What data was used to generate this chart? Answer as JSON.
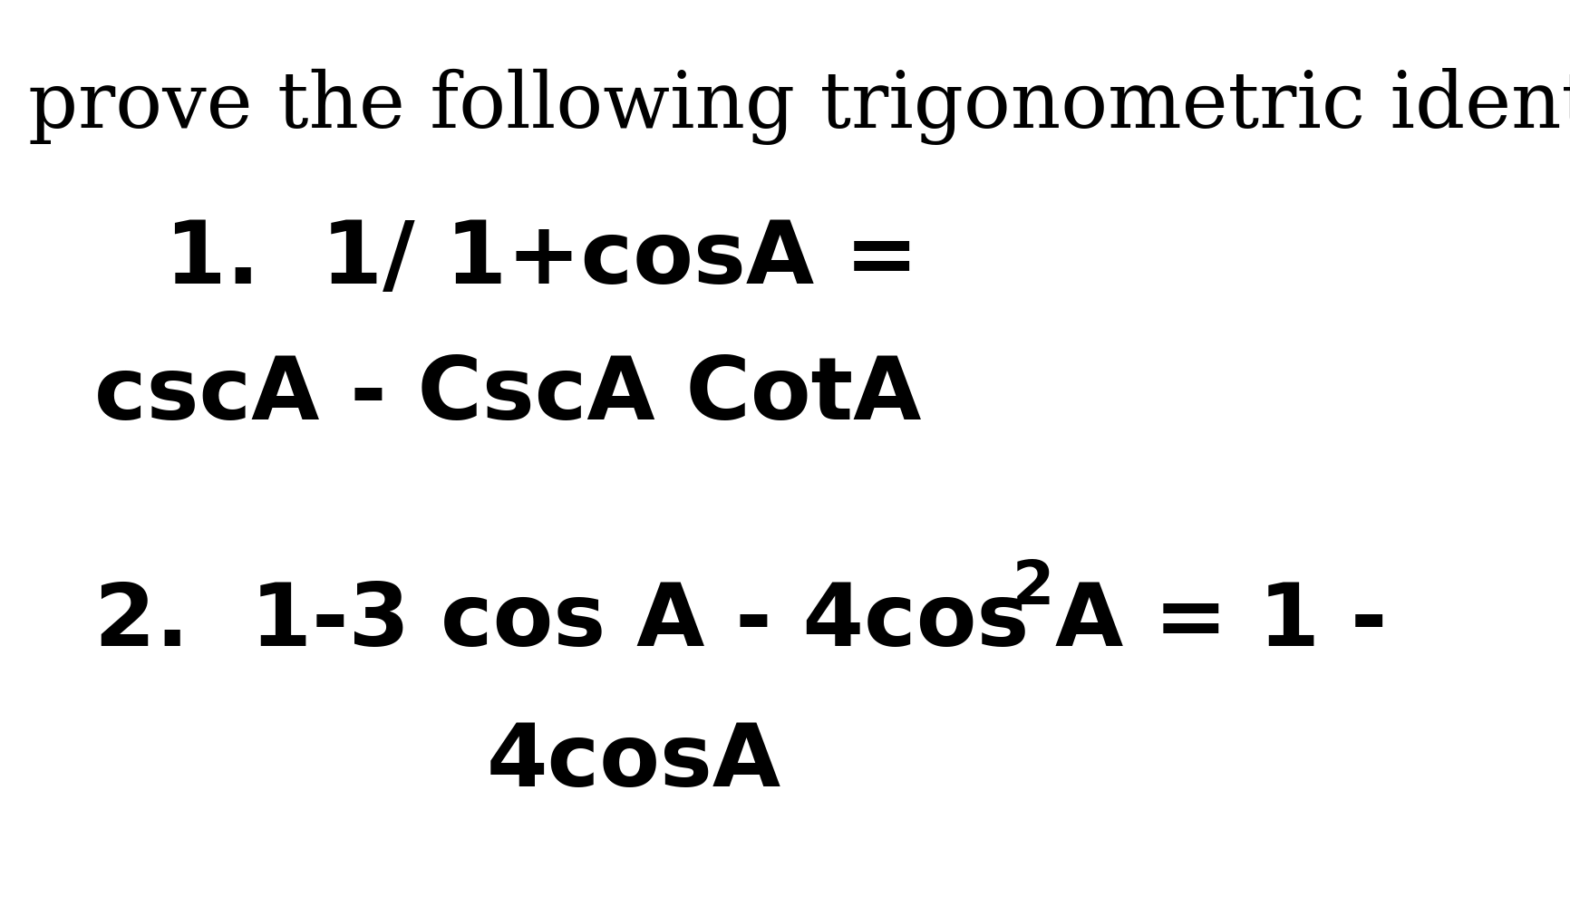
{
  "background_color": "#ffffff",
  "title_text": "prove the following trigonometric identities",
  "title_fontsize": 62,
  "title_fontfamily": "DejaVu Serif",
  "line1_text": "1.  1/ 1+cosA =",
  "line1_fontsize": 70,
  "line2_text": "cscA - CscA CotA",
  "line2_fontsize": 70,
  "line3a_text": "2.  1-3 cos A - 4cos",
  "line3_fontsize": 70,
  "sup_text": "2",
  "sup_fontsize": 48,
  "line3b_text": "A = 1 -",
  "line3b_fontsize": 70,
  "line4_text": "4cosA",
  "line4_fontsize": 70,
  "text_color": "#000000",
  "bold_fontweight": "bold",
  "fig_width": 17.32,
  "fig_height": 10.0,
  "dpi": 100
}
